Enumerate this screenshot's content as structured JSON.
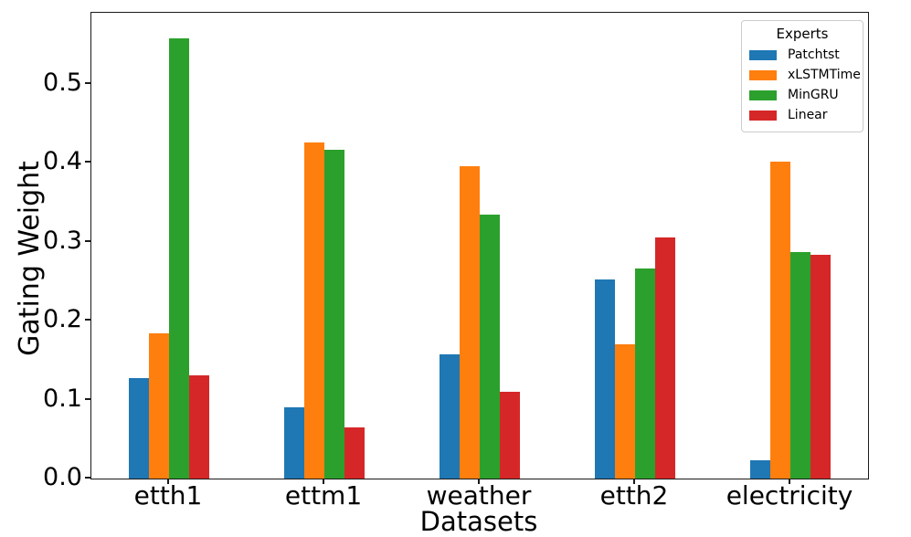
{
  "figure": {
    "background": "#ffffff",
    "spine_color": "#1a1a1a"
  },
  "chart_data": {
    "type": "bar",
    "title": "",
    "xlabel": "Datasets",
    "ylabel": "Gating Weight",
    "categories": [
      "etth1",
      "ettm1",
      "weather",
      "etth2",
      "electricity"
    ],
    "series": [
      {
        "name": "Patchtst",
        "color": "#1f77b4",
        "values": [
          0.127,
          0.09,
          0.157,
          0.252,
          0.023
        ]
      },
      {
        "name": "xLSTMTime",
        "color": "#ff7f0e",
        "values": [
          0.184,
          0.426,
          0.396,
          0.17,
          0.401
        ]
      },
      {
        "name": "MinGRU",
        "color": "#2ca02c",
        "values": [
          0.558,
          0.416,
          0.334,
          0.266,
          0.287
        ]
      },
      {
        "name": "Linear",
        "color": "#d62728",
        "values": [
          0.131,
          0.065,
          0.11,
          0.305,
          0.284
        ]
      }
    ],
    "legend": {
      "title": "Experts",
      "position": "upper-right"
    },
    "yticks": [
      "0.0",
      "0.1",
      "0.2",
      "0.3",
      "0.4",
      "0.5"
    ],
    "ytick_values": [
      0.0,
      0.1,
      0.2,
      0.3,
      0.4,
      0.5
    ],
    "ylim": [
      0,
      0.59
    ],
    "grid": false
  }
}
